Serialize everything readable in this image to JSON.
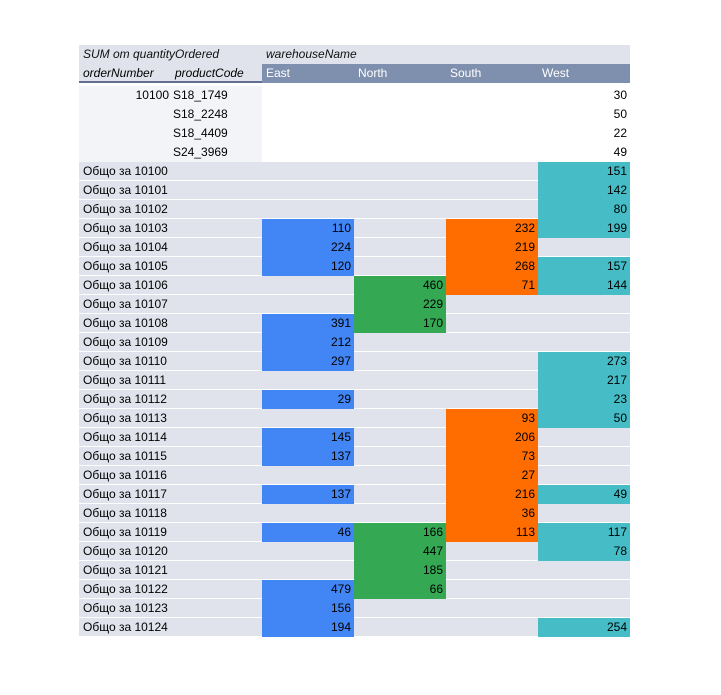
{
  "pivot": {
    "values_label": "SUM от quantityOrdered",
    "columns_label": "warehouseName",
    "row_labels": [
      "orderNumber",
      "productCode"
    ],
    "warehouses": [
      "East",
      "North",
      "South",
      "West"
    ],
    "colors": {
      "East": "#4285f4",
      "North": "#34a853",
      "South": "#ff6d01",
      "West": "#46bdc6"
    },
    "details": [
      {
        "order": "10100",
        "code": "S18_1749",
        "values": [
          "",
          "",
          "",
          "30"
        ]
      },
      {
        "order": "",
        "code": "S18_2248",
        "values": [
          "",
          "",
          "",
          "50"
        ]
      },
      {
        "order": "",
        "code": "S18_4409",
        "values": [
          "",
          "",
          "",
          "22"
        ]
      },
      {
        "order": "",
        "code": "S24_3969",
        "values": [
          "",
          "",
          "",
          "49"
        ]
      }
    ],
    "totals": [
      {
        "label": "Общо за 10100",
        "values": [
          "",
          "",
          "",
          "151"
        ]
      },
      {
        "label": "Общо за 10101",
        "values": [
          "",
          "",
          "",
          "142"
        ]
      },
      {
        "label": "Общо за 10102",
        "values": [
          "",
          "",
          "",
          "80"
        ]
      },
      {
        "label": "Общо за 10103",
        "values": [
          "110",
          "",
          "232",
          "199"
        ]
      },
      {
        "label": "Общо за 10104",
        "values": [
          "224",
          "",
          "219",
          ""
        ]
      },
      {
        "label": "Общо за 10105",
        "values": [
          "120",
          "",
          "268",
          "157"
        ]
      },
      {
        "label": "Общо за 10106",
        "values": [
          "",
          "460",
          "71",
          "144"
        ]
      },
      {
        "label": "Общо за 10107",
        "values": [
          "",
          "229",
          "",
          ""
        ]
      },
      {
        "label": "Общо за 10108",
        "values": [
          "391",
          "170",
          "",
          ""
        ]
      },
      {
        "label": "Общо за 10109",
        "values": [
          "212",
          "",
          "",
          ""
        ]
      },
      {
        "label": "Общо за 10110",
        "values": [
          "297",
          "",
          "",
          "273"
        ]
      },
      {
        "label": "Общо за 10111",
        "values": [
          "",
          "",
          "",
          "217"
        ]
      },
      {
        "label": "Общо за 10112",
        "values": [
          "29",
          "",
          "",
          "23"
        ]
      },
      {
        "label": "Общо за 10113",
        "values": [
          "",
          "",
          "93",
          "50"
        ]
      },
      {
        "label": "Общо за 10114",
        "values": [
          "145",
          "",
          "206",
          ""
        ]
      },
      {
        "label": "Общо за 10115",
        "values": [
          "137",
          "",
          "73",
          ""
        ]
      },
      {
        "label": "Общо за 10116",
        "values": [
          "",
          "",
          "27",
          ""
        ]
      },
      {
        "label": "Общо за 10117",
        "values": [
          "137",
          "",
          "216",
          "49"
        ]
      },
      {
        "label": "Общо за 10118",
        "values": [
          "",
          "",
          "36",
          ""
        ]
      },
      {
        "label": "Общо за 10119",
        "values": [
          "46",
          "166",
          "113",
          "117"
        ]
      },
      {
        "label": "Общо за 10120",
        "values": [
          "",
          "447",
          "",
          "78"
        ]
      },
      {
        "label": "Общо за 10121",
        "values": [
          "",
          "185",
          "",
          ""
        ]
      },
      {
        "label": "Общо за 10122",
        "values": [
          "479",
          "66",
          "",
          ""
        ]
      },
      {
        "label": "Общо за 10123",
        "values": [
          "156",
          "",
          "",
          ""
        ]
      },
      {
        "label": "Общо за 10124",
        "values": [
          "194",
          "",
          "",
          "254"
        ]
      }
    ]
  }
}
